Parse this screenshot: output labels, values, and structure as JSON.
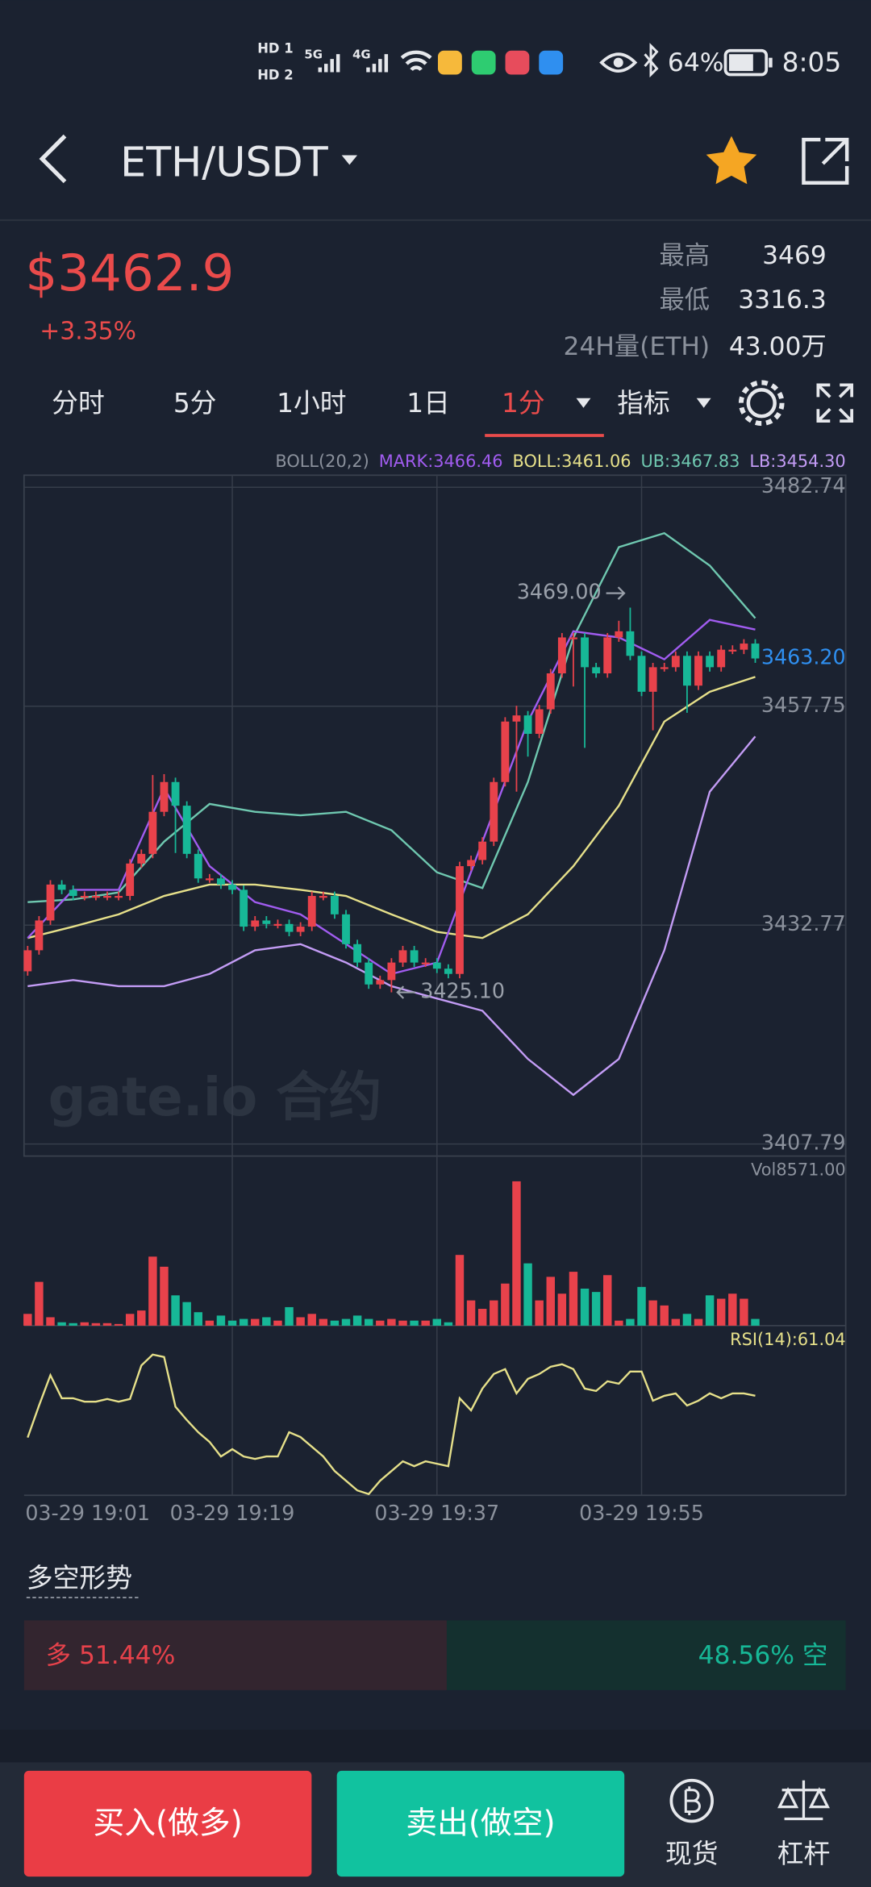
{
  "status_bar": {
    "sim": [
      "HD 1",
      "HD 2"
    ],
    "network": [
      "5G",
      "4G"
    ],
    "battery": "64%",
    "time": "8:05"
  },
  "header": {
    "pair": "ETH/USDT"
  },
  "ticker": {
    "price": "$3462.9",
    "change": "+3.35%",
    "stats": [
      {
        "label": "最高",
        "value": "3469"
      },
      {
        "label": "最低",
        "value": "3316.3"
      },
      {
        "label": "24H量(ETH)",
        "value": "43.00万"
      }
    ]
  },
  "tabs": [
    {
      "label": "分时"
    },
    {
      "label": "5分"
    },
    {
      "label": "1小时"
    },
    {
      "label": "1日"
    },
    {
      "label": "1分",
      "active": true,
      "dropdown": true
    },
    {
      "label": "指标",
      "dropdown": true
    }
  ],
  "indicator_legend": [
    {
      "text": "BOLL(20,2)",
      "color": "#8b919c"
    },
    {
      "text": "MARK:3466.46",
      "color": "#a15cf0"
    },
    {
      "text": "BOLL:3461.06",
      "color": "#e6e08a"
    },
    {
      "text": "UB:3467.83",
      "color": "#6fc8b0"
    },
    {
      "text": "LB:3454.30",
      "color": "#c39cf5"
    }
  ],
  "watermark": "gate.io 合约",
  "chart_data": [
    {
      "type": "candlestick",
      "open": [
        3427.5,
        3429.9,
        3433.3,
        3437.4,
        3436.8,
        3436.1,
        3436.1,
        3436.1,
        3436.1,
        3436.1,
        3439.8,
        3440.9,
        3445.7,
        3449.1,
        3446.4,
        3440.9,
        3438.1,
        3438.1,
        3437.4,
        3436.8,
        3432.6,
        3433.3,
        3432.9,
        3432.9,
        3432.0,
        3432.6,
        3436.1,
        3436.1,
        3434.0,
        3430.6,
        3428.5,
        3426.0,
        3426.5,
        3428.5,
        3429.9,
        3428.5,
        3428.5,
        3427.8,
        3427.2,
        3439.5,
        3440.2,
        3442.3,
        3449.1,
        3456.0,
        3456.7,
        3454.6,
        3457.4,
        3461.5,
        3465.6,
        3465.6,
        3462.2,
        3461.5,
        3465.6,
        3466.3,
        3463.5,
        3459.4,
        3462.2,
        3462.2,
        3463.5,
        3460.1,
        3463.5,
        3462.2,
        3464.2,
        3464.2,
        3464.9
      ],
      "high": [
        3430.4,
        3433.8,
        3437.9,
        3437.9,
        3437.3,
        3436.6,
        3436.6,
        3436.6,
        3436.6,
        3440.3,
        3441.4,
        3449.9,
        3450.0,
        3449.6,
        3446.9,
        3441.4,
        3438.6,
        3438.6,
        3437.9,
        3437.3,
        3433.8,
        3433.8,
        3433.4,
        3433.4,
        3433.1,
        3436.6,
        3436.6,
        3436.6,
        3434.5,
        3431.1,
        3429.0,
        3427.0,
        3429.0,
        3430.4,
        3430.4,
        3429.0,
        3429.0,
        3428.3,
        3440.0,
        3440.7,
        3442.8,
        3449.6,
        3456.5,
        3457.8,
        3457.2,
        3457.9,
        3462.0,
        3466.1,
        3466.1,
        3466.1,
        3462.7,
        3466.1,
        3467.5,
        3469.0,
        3464.0,
        3462.7,
        3462.7,
        3464.0,
        3464.0,
        3464.0,
        3464.0,
        3464.7,
        3464.7,
        3465.4,
        3465.4
      ],
      "low": [
        3427.0,
        3429.4,
        3432.8,
        3436.3,
        3435.6,
        3435.6,
        3435.6,
        3435.6,
        3435.6,
        3435.6,
        3439.3,
        3440.4,
        3445.2,
        3441.0,
        3440.4,
        3437.6,
        3437.6,
        3436.9,
        3436.3,
        3432.1,
        3432.1,
        3432.4,
        3432.4,
        3431.5,
        3431.5,
        3432.1,
        3435.6,
        3433.5,
        3430.1,
        3428.0,
        3425.5,
        3425.5,
        3425.1,
        3428.0,
        3428.0,
        3428.0,
        3427.3,
        3426.7,
        3426.7,
        3439.0,
        3439.7,
        3441.8,
        3448.6,
        3448.0,
        3452.0,
        3454.1,
        3456.9,
        3461.0,
        3460.0,
        3453.0,
        3461.0,
        3461.0,
        3465.1,
        3463.0,
        3458.9,
        3455.0,
        3461.7,
        3461.7,
        3457.0,
        3459.6,
        3461.7,
        3461.7,
        3463.7,
        3463.7,
        3462.7
      ],
      "close": [
        3429.9,
        3433.3,
        3437.4,
        3436.8,
        3436.1,
        3436.1,
        3436.1,
        3436.1,
        3436.1,
        3439.8,
        3440.9,
        3445.7,
        3449.1,
        3446.4,
        3440.9,
        3438.1,
        3438.1,
        3437.4,
        3436.8,
        3432.6,
        3433.3,
        3432.9,
        3432.9,
        3432.0,
        3432.6,
        3436.1,
        3436.1,
        3434.0,
        3430.6,
        3428.5,
        3426.0,
        3426.5,
        3428.5,
        3429.9,
        3428.5,
        3428.5,
        3427.8,
        3427.2,
        3439.5,
        3440.2,
        3442.3,
        3449.1,
        3456.0,
        3456.7,
        3454.6,
        3457.4,
        3461.5,
        3465.6,
        3465.6,
        3462.2,
        3461.5,
        3465.6,
        3466.3,
        3463.5,
        3459.4,
        3462.2,
        3462.2,
        3463.5,
        3460.1,
        3463.5,
        3462.2,
        3464.2,
        3464.2,
        3464.9,
        3463.2
      ],
      "ylim": [
        3407.79,
        3482.74
      ],
      "yticks": [
        3482.74,
        3457.75,
        3432.77,
        3407.79
      ],
      "grid": true,
      "up_color": "#e8424b",
      "down_color": "#17b897",
      "last_price": {
        "value": 3463.2,
        "label": "3463.20"
      },
      "high_marker": {
        "value": 3469,
        "label": "3469.00"
      },
      "low_marker": {
        "value": 3425.1,
        "label": "3425.10"
      },
      "lines_x": [
        0,
        4,
        8,
        12,
        16,
        20,
        24,
        28,
        32,
        36,
        40,
        44,
        48,
        52,
        56,
        60,
        64
      ],
      "lines": [
        {
          "color": "#6fc8b0",
          "values": [
            3435.4,
            3435.7,
            3436.5,
            3442.3,
            3446.6,
            3445.7,
            3445.3,
            3445.7,
            3443.6,
            3438.8,
            3437.0,
            3449.1,
            3465.6,
            3475.9,
            3477.5,
            3473.8,
            3467.8
          ]
        },
        {
          "color": "#e6e08a",
          "values": [
            3431.3,
            3432.6,
            3434.0,
            3436.1,
            3437.4,
            3437.4,
            3436.8,
            3436.1,
            3434.0,
            3432.0,
            3431.3,
            3434.0,
            3439.5,
            3446.4,
            3456.0,
            3459.4,
            3461.1
          ]
        },
        {
          "color": "#c39cf5",
          "values": [
            3425.8,
            3426.5,
            3425.8,
            3425.8,
            3427.2,
            3429.9,
            3430.6,
            3428.5,
            3425.8,
            3424.4,
            3423.0,
            3417.5,
            3413.4,
            3417.5,
            3429.9,
            3448.0,
            3454.3
          ]
        },
        {
          "color": "#a15cf0",
          "values": [
            3431.3,
            3436.8,
            3436.8,
            3448.4,
            3439.5,
            3435.4,
            3434.0,
            3430.6,
            3427.2,
            3428.5,
            3442.3,
            3456.0,
            3466.3,
            3465.6,
            3463.1,
            3467.6,
            3466.5
          ]
        }
      ]
    },
    {
      "type": "bar",
      "label": "Vol8571.00",
      "ylim": [
        0,
        8571
      ],
      "values": [
        700,
        2600,
        500,
        200,
        150,
        200,
        150,
        150,
        100,
        700,
        900,
        4100,
        3500,
        1800,
        1400,
        800,
        300,
        600,
        300,
        400,
        400,
        500,
        300,
        1100,
        500,
        700,
        400,
        300,
        400,
        600,
        400,
        300,
        400,
        300,
        300,
        300,
        400,
        200,
        4200,
        1500,
        1000,
        1500,
        2500,
        8571,
        3700,
        1500,
        2900,
        1900,
        3200,
        2200,
        2000,
        3000,
        300,
        400,
        2300,
        1500,
        1200,
        400,
        700,
        400,
        1800,
        1600,
        1900,
        1600,
        400
      ]
    },
    {
      "type": "line",
      "label": "RSI(14):61.04",
      "color": "#e6e08a",
      "ylim": [
        20,
        80
      ],
      "categories": [
        "03-29 19:01",
        null,
        null,
        null,
        null,
        null,
        null,
        null,
        null,
        null,
        null,
        null,
        null,
        null,
        null,
        null,
        null,
        null,
        "03-29 19:19",
        null,
        null,
        null,
        null,
        null,
        null,
        null,
        null,
        null,
        null,
        null,
        null,
        null,
        null,
        null,
        null,
        null,
        "03-29 19:37",
        null,
        null,
        null,
        null,
        null,
        null,
        null,
        null,
        null,
        null,
        null,
        null,
        null,
        null,
        null,
        null,
        null,
        "03-29 19:55",
        null,
        null,
        null,
        null,
        null,
        null,
        null,
        null,
        null,
        null
      ],
      "values": [
        43.8,
        57,
        69.5,
        60,
        60,
        58.6,
        58.6,
        59.7,
        58.6,
        59.7,
        73.5,
        78,
        77,
        56.5,
        51,
        46,
        42,
        36,
        39,
        36,
        35,
        36,
        36,
        46,
        44,
        40,
        36,
        30,
        26,
        22,
        20.5,
        26,
        30,
        34,
        32,
        34,
        33,
        32,
        60,
        55,
        64,
        70,
        72,
        62,
        68,
        70,
        73,
        74,
        72,
        64,
        63,
        67,
        66,
        71,
        71,
        59,
        61,
        62,
        57,
        59,
        62,
        60,
        62,
        62,
        61.04
      ]
    }
  ],
  "sentiment": {
    "title": "多空形势",
    "long": {
      "value": 51.44,
      "label": "多 51.44%",
      "color": "#e8424b"
    },
    "short": {
      "value": 48.56,
      "label": "48.56% 空",
      "color": "#17b897"
    }
  },
  "actions": {
    "buy": "买入(做多)",
    "sell": "卖出(做空)",
    "spot": "现货",
    "margin": "杠杆"
  }
}
